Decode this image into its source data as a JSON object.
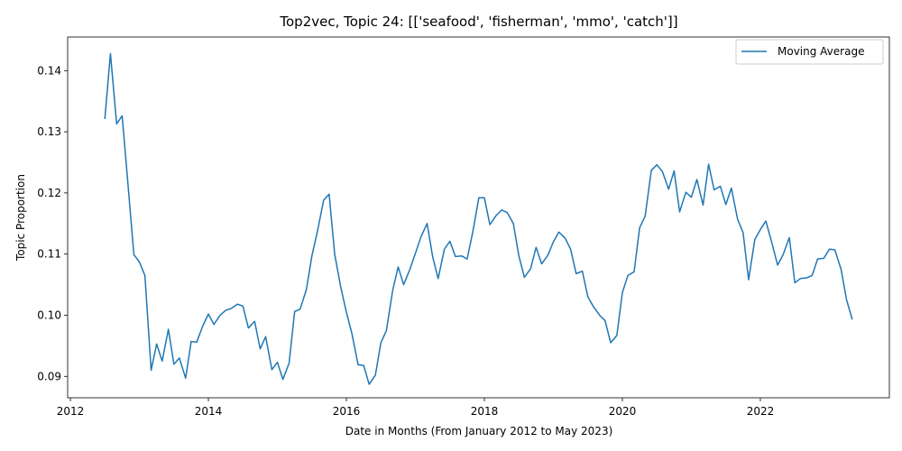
{
  "chart_data": {
    "type": "line",
    "title": "Top2vec, Topic 24: [['seafood', 'fisherman', 'mmo', 'catch']]",
    "xlabel": "Date in Months (From January 2012 to May 2023)",
    "ylabel": "Topic Proportion",
    "xlim": [
      2011.96,
      2023.87
    ],
    "ylim": [
      0.0865,
      0.1455
    ],
    "xticks": [
      2012,
      2014,
      2016,
      2018,
      2020,
      2022
    ],
    "xtick_labels": [
      "2012",
      "2014",
      "2016",
      "2018",
      "2020",
      "2022"
    ],
    "yticks": [
      0.09,
      0.1,
      0.11,
      0.12,
      0.13,
      0.14
    ],
    "ytick_labels": [
      "0.09",
      "0.10",
      "0.11",
      "0.12",
      "0.13",
      "0.14"
    ],
    "grid": false,
    "legend_position": "top-right",
    "color": "#1f77b4",
    "series": [
      {
        "name": "Moving Average",
        "x": [
          2012.5,
          2012.58,
          2012.67,
          2012.75,
          2012.83,
          2012.92,
          2013.0,
          2013.08,
          2013.17,
          2013.25,
          2013.33,
          2013.42,
          2013.5,
          2013.58,
          2013.67,
          2013.75,
          2013.83,
          2013.92,
          2014.0,
          2014.08,
          2014.17,
          2014.25,
          2014.33,
          2014.42,
          2014.5,
          2014.58,
          2014.67,
          2014.75,
          2014.83,
          2014.92,
          2015.0,
          2015.08,
          2015.17,
          2015.25,
          2015.33,
          2015.42,
          2015.5,
          2015.58,
          2015.67,
          2015.75,
          2015.83,
          2015.92,
          2016.0,
          2016.08,
          2016.17,
          2016.25,
          2016.33,
          2016.42,
          2016.5,
          2016.58,
          2016.67,
          2016.75,
          2016.83,
          2016.92,
          2017.0,
          2017.08,
          2017.17,
          2017.25,
          2017.33,
          2017.42,
          2017.5,
          2017.58,
          2017.67,
          2017.75,
          2017.83,
          2017.92,
          2018.0,
          2018.08,
          2018.17,
          2018.25,
          2018.33,
          2018.42,
          2018.5,
          2018.58,
          2018.67,
          2018.75,
          2018.83,
          2018.92,
          2019.0,
          2019.08,
          2019.17,
          2019.25,
          2019.33,
          2019.42,
          2019.5,
          2019.58,
          2019.67,
          2019.75,
          2019.83,
          2019.92,
          2020.0,
          2020.08,
          2020.17,
          2020.25,
          2020.33,
          2020.42,
          2020.5,
          2020.58,
          2020.67,
          2020.75,
          2020.83,
          2020.92,
          2021.0,
          2021.08,
          2021.17,
          2021.25,
          2021.33,
          2021.42,
          2021.5,
          2021.58,
          2021.67,
          2021.75,
          2021.83,
          2021.92,
          2022.0,
          2022.08,
          2022.17,
          2022.25,
          2022.33,
          2022.42,
          2022.5,
          2022.58,
          2022.67,
          2022.75,
          2022.83,
          2022.92,
          2023.0,
          2023.08,
          2023.17,
          2023.25,
          2023.33
        ],
        "values": [
          0.1322,
          0.1428,
          0.1313,
          0.1326,
          0.122,
          0.1099,
          0.1087,
          0.1065,
          0.091,
          0.0953,
          0.0925,
          0.0977,
          0.092,
          0.093,
          0.0897,
          0.0957,
          0.0956,
          0.0983,
          0.1002,
          0.0985,
          0.1,
          0.1008,
          0.1011,
          0.1018,
          0.1015,
          0.0979,
          0.099,
          0.0945,
          0.0965,
          0.0911,
          0.0923,
          0.0895,
          0.0922,
          0.1006,
          0.101,
          0.1042,
          0.1097,
          0.1137,
          0.1188,
          0.1198,
          0.11,
          0.1045,
          0.1005,
          0.097,
          0.0919,
          0.0918,
          0.0887,
          0.0902,
          0.0955,
          0.0975,
          0.104,
          0.1079,
          0.105,
          0.1075,
          0.1101,
          0.1128,
          0.115,
          0.1096,
          0.106,
          0.1108,
          0.1121,
          0.1096,
          0.1097,
          0.1092,
          0.1135,
          0.1192,
          0.1192,
          0.1148,
          0.1163,
          0.1172,
          0.1168,
          0.115,
          0.1097,
          0.1062,
          0.1076,
          0.1111,
          0.1084,
          0.1098,
          0.112,
          0.1136,
          0.1126,
          0.1108,
          0.1068,
          0.1072,
          0.103,
          0.1014,
          0.1,
          0.0991,
          0.0955,
          0.0967,
          0.1037,
          0.1065,
          0.1071,
          0.1143,
          0.1162,
          0.1237,
          0.1246,
          0.1235,
          0.1206,
          0.1236,
          0.1169,
          0.1201,
          0.1193,
          0.1222,
          0.118,
          0.1247,
          0.1205,
          0.1211,
          0.1181,
          0.1208,
          0.1157,
          0.1135,
          0.1058,
          0.1124,
          0.114,
          0.1154,
          0.1117,
          0.1082,
          0.1099,
          0.1127,
          0.1053,
          0.106,
          0.1061,
          0.1065,
          0.1092,
          0.1093,
          0.1108,
          0.1107,
          0.1075,
          0.1025,
          0.0994
        ]
      }
    ]
  }
}
